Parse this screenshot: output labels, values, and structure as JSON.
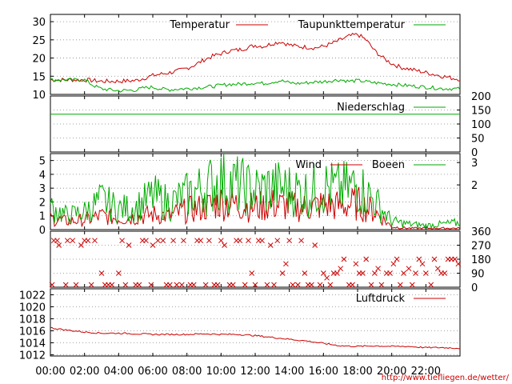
{
  "credit": "http://www.tiefliegen.de/wetter/",
  "colors": {
    "red": "#cc0000",
    "green": "#00aa00",
    "grid": "#888888",
    "axis": "#000000"
  },
  "x_ticks": [
    "00:00",
    "02:00",
    "04:00",
    "06:00",
    "08:00",
    "10:00",
    "12:00",
    "14:00",
    "16:00",
    "18:00",
    "20:00",
    "22:00"
  ],
  "chart_data": [
    {
      "type": "line",
      "panel": "temperature",
      "yticks_left": [
        "30",
        "25",
        "20",
        "15",
        "10"
      ],
      "ylim": [
        10,
        32
      ],
      "x_unit": "hour of day",
      "series": [
        {
          "name": "Temperatur",
          "color": "#cc0000",
          "x": [
            0,
            1,
            2,
            2.5,
            3,
            4,
            5,
            5.5,
            6,
            6.5,
            7,
            7.5,
            8,
            8.5,
            9,
            9.5,
            10,
            10.5,
            11,
            11.5,
            12,
            12.5,
            13,
            13.5,
            14,
            14.5,
            15,
            15.5,
            16,
            16.5,
            17,
            17.5,
            18,
            18.5,
            19,
            19.5,
            20,
            20.5,
            21,
            21.5,
            22,
            22.5,
            23,
            23.5,
            24
          ],
          "values": [
            14,
            14,
            14,
            13.8,
            13.6,
            13.6,
            13.8,
            14.5,
            15.2,
            15.6,
            16,
            16.5,
            17.2,
            18.2,
            19.5,
            20.5,
            21.2,
            22,
            22.2,
            22.8,
            23.5,
            23.2,
            24,
            24.5,
            23.6,
            23.2,
            23,
            22.8,
            23.2,
            24,
            25,
            26,
            26.5,
            25,
            22,
            20,
            18.5,
            17.5,
            17,
            16.5,
            16,
            15.5,
            15,
            14.5,
            14.2
          ]
        },
        {
          "name": "Taupunkttemperatur",
          "color": "#00aa00",
          "x": [
            0,
            1,
            2,
            2.5,
            3,
            4,
            5,
            5.5,
            6,
            6.5,
            7,
            7.5,
            8,
            8.5,
            9,
            9.5,
            10,
            10.5,
            11,
            11.5,
            12,
            12.5,
            13,
            13.5,
            14,
            14.5,
            15,
            15.5,
            16,
            16.5,
            17,
            17.5,
            18,
            18.5,
            19,
            19.5,
            20,
            20.5,
            21,
            21.5,
            22,
            22.5,
            23,
            23.5,
            24
          ],
          "values": [
            14,
            14,
            14,
            12.5,
            11.5,
            11,
            11.2,
            11.8,
            12,
            11.5,
            11.3,
            11.5,
            11.6,
            11.8,
            12,
            12.2,
            12.5,
            12.8,
            12.8,
            13,
            13.2,
            13,
            13.4,
            13.8,
            13.2,
            13,
            13.2,
            13.4,
            13.5,
            13.8,
            14,
            13.6,
            13.8,
            13.5,
            13.2,
            13,
            12.8,
            12.6,
            12.4,
            12.2,
            12,
            11.8,
            11.6,
            11.6,
            11.5
          ]
        }
      ]
    },
    {
      "type": "line",
      "panel": "precipitation",
      "yticks_right": [
        "200",
        "150",
        "100",
        "50",
        "0"
      ],
      "ylim": [
        0,
        200
      ],
      "series": [
        {
          "name": "Niederschlag",
          "color": "#00aa00",
          "x": [
            0,
            24
          ],
          "values": [
            135,
            135
          ]
        }
      ]
    },
    {
      "type": "line",
      "panel": "wind",
      "yticks_left": [
        "5",
        "4",
        "3",
        "2",
        "1",
        "0"
      ],
      "yticks_right": [
        "3",
        "2"
      ],
      "ylim": [
        0,
        5.5
      ],
      "series": [
        {
          "name": "Wind",
          "color": "#cc0000",
          "x": [
            0,
            1,
            2,
            3,
            4,
            5,
            6,
            7,
            8,
            9,
            10,
            11,
            12,
            13,
            14,
            15,
            16,
            17,
            18,
            19,
            20,
            21,
            22,
            23,
            24
          ],
          "values": [
            0.8,
            0.6,
            0.7,
            1.0,
            0.8,
            0.9,
            1.1,
            1.0,
            1.4,
            1.6,
            2.0,
            1.8,
            1.6,
            1.8,
            1.7,
            1.6,
            1.8,
            1.7,
            1.9,
            1.3,
            0.2,
            0.1,
            0.1,
            0.1,
            0.1
          ]
        },
        {
          "name": "Boeen",
          "color": "#00aa00",
          "x": [
            0,
            1,
            2,
            3,
            4,
            5,
            6,
            7,
            8,
            9,
            10,
            11,
            12,
            13,
            14,
            15,
            16,
            17,
            18,
            19,
            20,
            21,
            22,
            23,
            24
          ],
          "values": [
            1.6,
            1.0,
            1.3,
            2.1,
            1.5,
            1.6,
            2.4,
            1.9,
            2.5,
            3.0,
            3.6,
            3.2,
            2.8,
            3.1,
            2.9,
            2.7,
            3.1,
            2.9,
            3.2,
            2.1,
            0.6,
            0.4,
            0.3,
            0.4,
            0.5
          ]
        }
      ]
    },
    {
      "type": "scatter",
      "panel": "wind_direction",
      "yticks_right": [
        "360",
        "270",
        "180",
        "90",
        "0"
      ],
      "ylim": [
        0,
        360
      ],
      "series": [
        {
          "name": "",
          "color": "#cc0000",
          "x": [
            0.2,
            0.5,
            1,
            1.3,
            1.8,
            2.2,
            2.6,
            3.2,
            3.6,
            4.2,
            4.6,
            5.2,
            5.6,
            6.0,
            6.6,
            7.0,
            7.4,
            7.8,
            8.4,
            8.8,
            9.3,
            9.8,
            10.2,
            10.7,
            11.1,
            11.6,
            12.0,
            12.4,
            12.9,
            13.3,
            13.8,
            14.2,
            14.7,
            15.1,
            15.5,
            16.0,
            16.4,
            16.8,
            17.2,
            17.7,
            18.1,
            18.5,
            19.0,
            19.4,
            19.9,
            20.3,
            20.7,
            21.2,
            21.6,
            22.0,
            22.5,
            22.9,
            23.3,
            23.7
          ],
          "values": [
            300,
            270,
            300,
            300,
            270,
            300,
            300,
            0,
            0,
            300,
            270,
            0,
            300,
            270,
            300,
            0,
            0,
            300,
            0,
            300,
            300,
            0,
            270,
            0,
            300,
            300,
            0,
            300,
            270,
            300,
            150,
            0,
            300,
            0,
            270,
            90,
            0,
            90,
            180,
            0,
            90,
            180,
            90,
            0,
            90,
            180,
            90,
            0,
            180,
            90,
            180,
            90,
            180,
            180
          ]
        },
        {
          "name": "",
          "color": "#cc0000",
          "x": [
            0.1,
            0.4,
            0.9,
            1.5,
            2.0,
            2.4,
            3.0,
            3.4,
            4.0,
            4.4,
            5.0,
            5.4,
            5.9,
            6.3,
            6.8,
            7.2,
            7.7,
            8.2,
            8.6,
            9.1,
            9.6,
            10.0,
            10.5,
            10.9,
            11.4,
            11.8,
            12.2,
            12.7,
            13.1,
            13.6,
            14.0,
            14.5,
            14.9,
            15.3,
            15.8,
            16.2,
            16.6,
            17.0,
            17.5,
            17.9,
            18.3,
            18.8,
            19.2,
            19.7,
            20.1,
            20.5,
            21.0,
            21.4,
            21.8,
            22.3,
            22.7,
            23.1,
            23.5,
            23.9
          ],
          "values": [
            0,
            300,
            0,
            0,
            300,
            0,
            90,
            0,
            90,
            0,
            0,
            300,
            0,
            300,
            0,
            300,
            0,
            0,
            300,
            0,
            0,
            300,
            0,
            300,
            0,
            90,
            300,
            0,
            0,
            90,
            300,
            0,
            90,
            0,
            0,
            60,
            90,
            120,
            0,
            150,
            90,
            0,
            120,
            90,
            150,
            0,
            120,
            90,
            150,
            0,
            120,
            90,
            180,
            150
          ]
        }
      ]
    },
    {
      "type": "line",
      "panel": "pressure",
      "yticks_left": [
        "1022",
        "1020",
        "1018",
        "1016",
        "1014",
        "1012"
      ],
      "ylim": [
        1011.8,
        1023
      ],
      "series": [
        {
          "name": "Luftdruck",
          "color": "#cc0000",
          "x": [
            0,
            1,
            2,
            3,
            4,
            5,
            6,
            7,
            8,
            9,
            10,
            11,
            12,
            13,
            14,
            15,
            16,
            17,
            18,
            19,
            20,
            21,
            22,
            23,
            24
          ],
          "values": [
            1016.5,
            1016.1,
            1015.8,
            1015.6,
            1015.6,
            1015.5,
            1015.4,
            1015.4,
            1015.4,
            1015.5,
            1015.4,
            1015.4,
            1015.2,
            1014.9,
            1014.6,
            1014.3,
            1013.9,
            1013.5,
            1013.4,
            1013.5,
            1013.4,
            1013.4,
            1013.2,
            1013.2,
            1013.1
          ]
        }
      ]
    }
  ]
}
